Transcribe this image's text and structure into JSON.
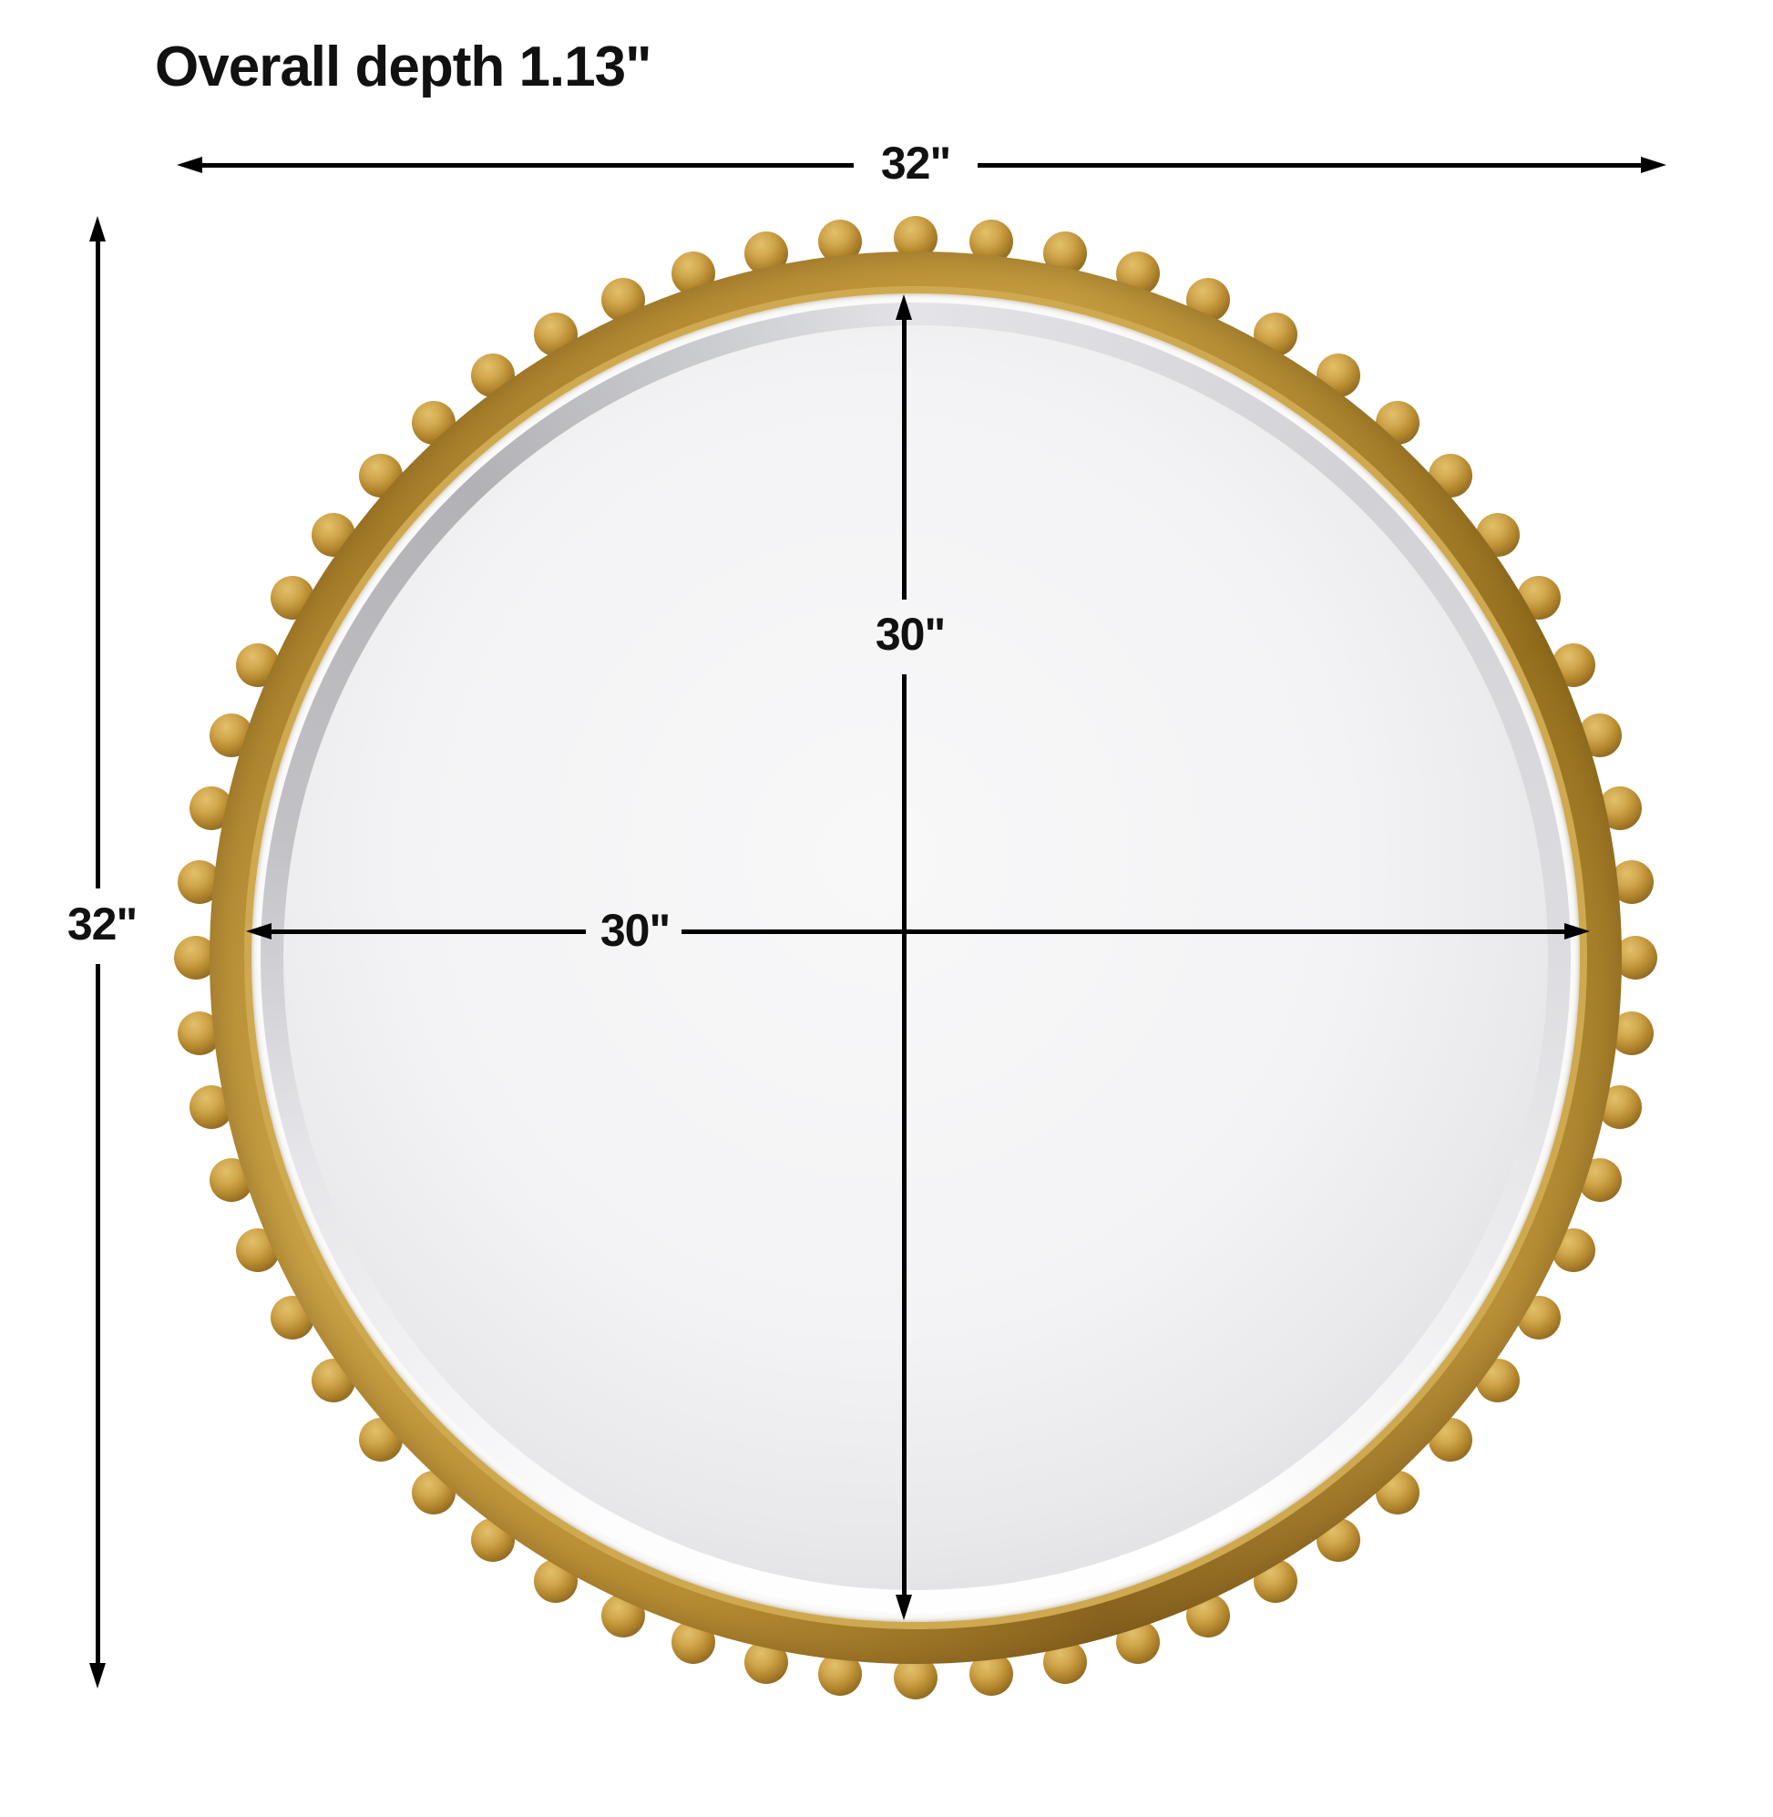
{
  "title": "Overall depth 1.13\"",
  "dimensions": {
    "overall_width_label": "32\"",
    "overall_height_label": "32\"",
    "glass_width_label": "30\"",
    "glass_height_label": "30\"",
    "overall_width_in": 32,
    "overall_height_in": 32,
    "glass_width_in": 30,
    "glass_height_in": 30,
    "overall_depth_in": 1.13
  },
  "product": {
    "type": "round beaded wall mirror",
    "bead_count": 60
  },
  "colors": {
    "line": "#000000",
    "gold_light": "#e2c06a",
    "gold_mid": "#b5882e",
    "gold_dark": "#8a6520",
    "gold_lip": "#cfa950",
    "bevel_gray": "#b2b2b6",
    "glass_light": "#f8f8f9",
    "glass_dark": "#c7c7cb"
  }
}
